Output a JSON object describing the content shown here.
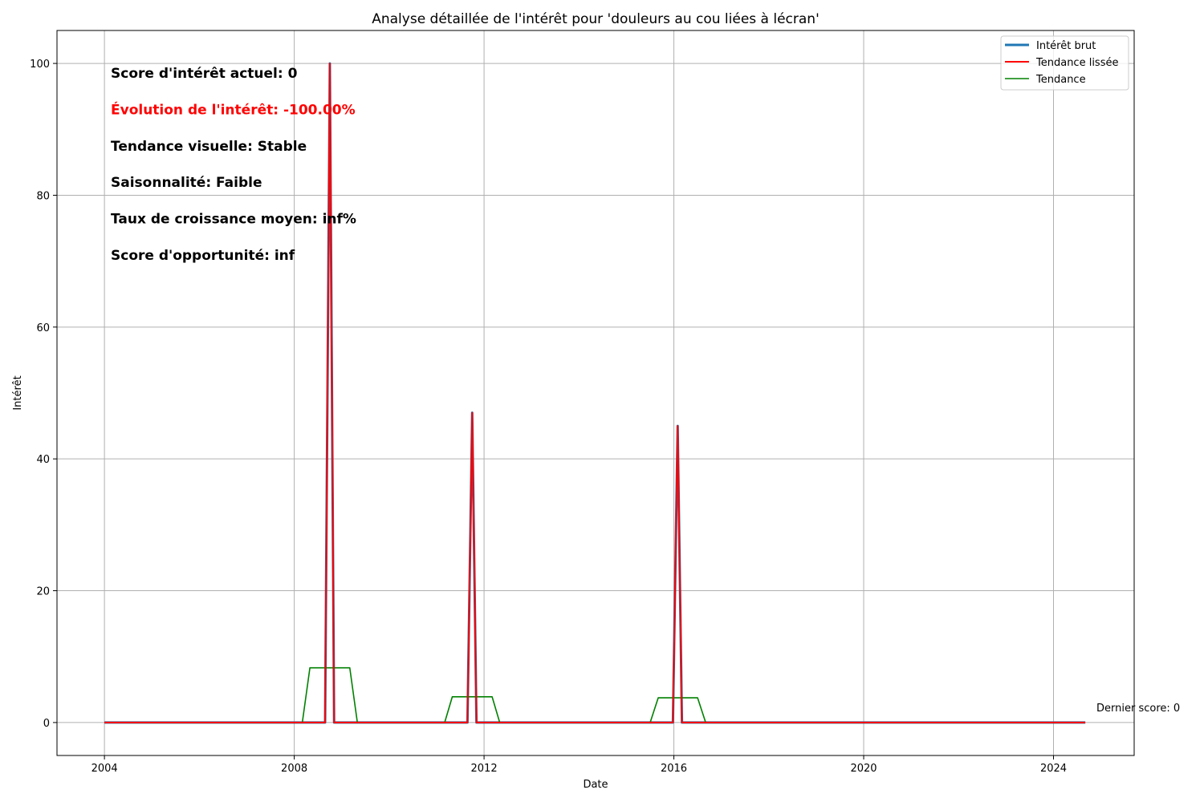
{
  "chart_data": {
    "type": "line",
    "title": "Analyse détaillée de l'intérêt pour 'douleurs au cou liées à lécran'",
    "xlabel": "Date",
    "ylabel": "Intérêt",
    "xlim": [
      2003.0,
      2025.7
    ],
    "ylim": [
      -5,
      105
    ],
    "x_ticks": [
      2004,
      2008,
      2012,
      2016,
      2020,
      2024
    ],
    "x_tick_labels": [
      "2004",
      "2008",
      "2012",
      "2016",
      "2020",
      "2024"
    ],
    "y_ticks": [
      0,
      20,
      40,
      60,
      80,
      100
    ],
    "y_tick_labels": [
      "0",
      "20",
      "40",
      "60",
      "80",
      "100"
    ],
    "grid": true,
    "legend_position": "top-right",
    "series": [
      {
        "name": "Intérêt brut",
        "color": "#1f77b4",
        "points": [
          [
            2004.0,
            0
          ],
          [
            2008.65,
            0
          ],
          [
            2008.75,
            100
          ],
          [
            2008.84,
            0
          ],
          [
            2011.65,
            0
          ],
          [
            2011.75,
            47
          ],
          [
            2011.84,
            0
          ],
          [
            2015.98,
            0
          ],
          [
            2016.08,
            45
          ],
          [
            2016.17,
            0
          ],
          [
            2024.67,
            0
          ]
        ]
      },
      {
        "name": "Tendance lissée",
        "color": "#ff0000",
        "points": [
          [
            2004.0,
            0
          ],
          [
            2008.65,
            0
          ],
          [
            2008.75,
            100
          ],
          [
            2008.84,
            0
          ],
          [
            2011.65,
            0
          ],
          [
            2011.75,
            47
          ],
          [
            2011.84,
            0
          ],
          [
            2015.98,
            0
          ],
          [
            2016.08,
            45
          ],
          [
            2016.17,
            0
          ],
          [
            2024.67,
            0
          ]
        ]
      },
      {
        "name": "Tendance",
        "color": "#008000",
        "points": [
          [
            2004.5,
            0
          ],
          [
            2008.17,
            0
          ],
          [
            2008.33,
            8.3
          ],
          [
            2009.17,
            8.3
          ],
          [
            2009.33,
            0
          ],
          [
            2011.17,
            0
          ],
          [
            2011.33,
            3.9
          ],
          [
            2012.17,
            3.9
          ],
          [
            2012.33,
            0
          ],
          [
            2015.5,
            0
          ],
          [
            2015.67,
            3.75
          ],
          [
            2016.5,
            3.75
          ],
          [
            2016.67,
            0
          ],
          [
            2024.17,
            0
          ]
        ]
      }
    ],
    "annotations": [
      {
        "text": "Score d'intérêt actuel: 0",
        "color": "#000000"
      },
      {
        "text": "Évolution de l'intérêt: -100.00%",
        "color": "#ff0000"
      },
      {
        "text": "Tendance visuelle: Stable",
        "color": "#000000"
      },
      {
        "text": "Saisonnalité: Faible",
        "color": "#000000"
      },
      {
        "text": "Taux de croissance moyen: inf%",
        "color": "#000000"
      },
      {
        "text": "Score d'opportunité: inf",
        "color": "#000000"
      }
    ],
    "last_value_note": {
      "text": "Dernier score: 0",
      "x": 2024.67,
      "y": 0
    }
  }
}
